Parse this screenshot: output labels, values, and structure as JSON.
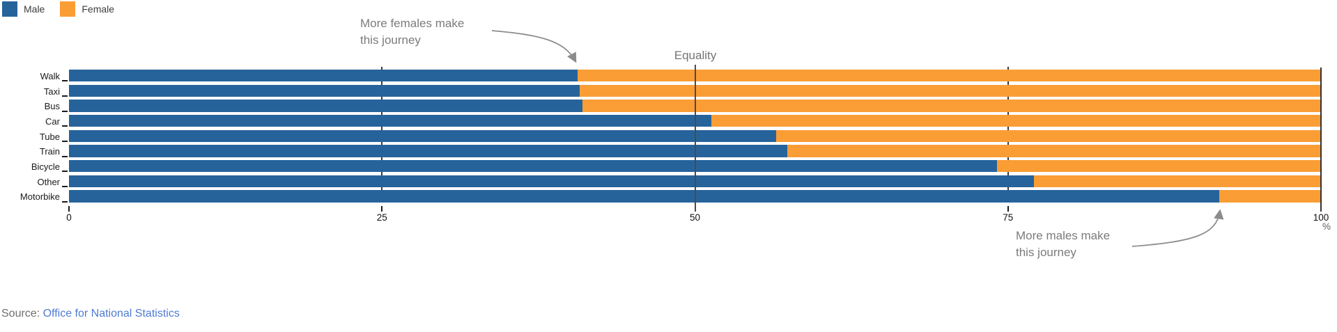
{
  "legend": [
    {
      "label": "Male",
      "color": "#26639B"
    },
    {
      "label": "Female",
      "color": "#FB9D35"
    }
  ],
  "annotations": {
    "female_note_line1": "More females make",
    "female_note_line2": "this journey",
    "equality_label": "Equality",
    "male_note_line1": "More males make",
    "male_note_line2": "this journey"
  },
  "axis": {
    "tick_labels": [
      "0",
      "25",
      "50",
      "75",
      "100"
    ],
    "tick_values": [
      0,
      25,
      50,
      75,
      100
    ],
    "unit": "%"
  },
  "source": {
    "prefix": "Source: ",
    "link": "Office for National Statistics"
  },
  "colors": {
    "male": "#26639B",
    "female": "#FB9D35",
    "equality_line": "#4a4a4a",
    "arrow": "#8c8c8c",
    "link": "#4e7bd3"
  },
  "chart_data": {
    "type": "bar",
    "orientation": "horizontal",
    "stacked": true,
    "categories": [
      "Walk",
      "Taxi",
      "Bus",
      "Car",
      "Tube",
      "Train",
      "Bicycle",
      "Other",
      "Motorbike"
    ],
    "series": [
      {
        "name": "Male",
        "values": [
          40.6,
          40.8,
          41.0,
          51.3,
          56.5,
          57.4,
          74.1,
          77.1,
          91.9
        ]
      },
      {
        "name": "Female",
        "values": [
          59.4,
          59.2,
          59.0,
          48.7,
          43.5,
          42.6,
          25.9,
          22.9,
          8.1
        ]
      }
    ],
    "xlim": [
      0,
      100
    ],
    "xlabel": "%",
    "ylabel": "",
    "title": "",
    "legend_position": "top-left",
    "grid": "ticks at 25/75 in bar gaps, solid equality line at 50, end line at 100",
    "annotations": [
      "More females make this journey -> Walk male/female boundary",
      "Equality line at 50%",
      "More males make this journey -> Motorbike male/female boundary"
    ]
  }
}
